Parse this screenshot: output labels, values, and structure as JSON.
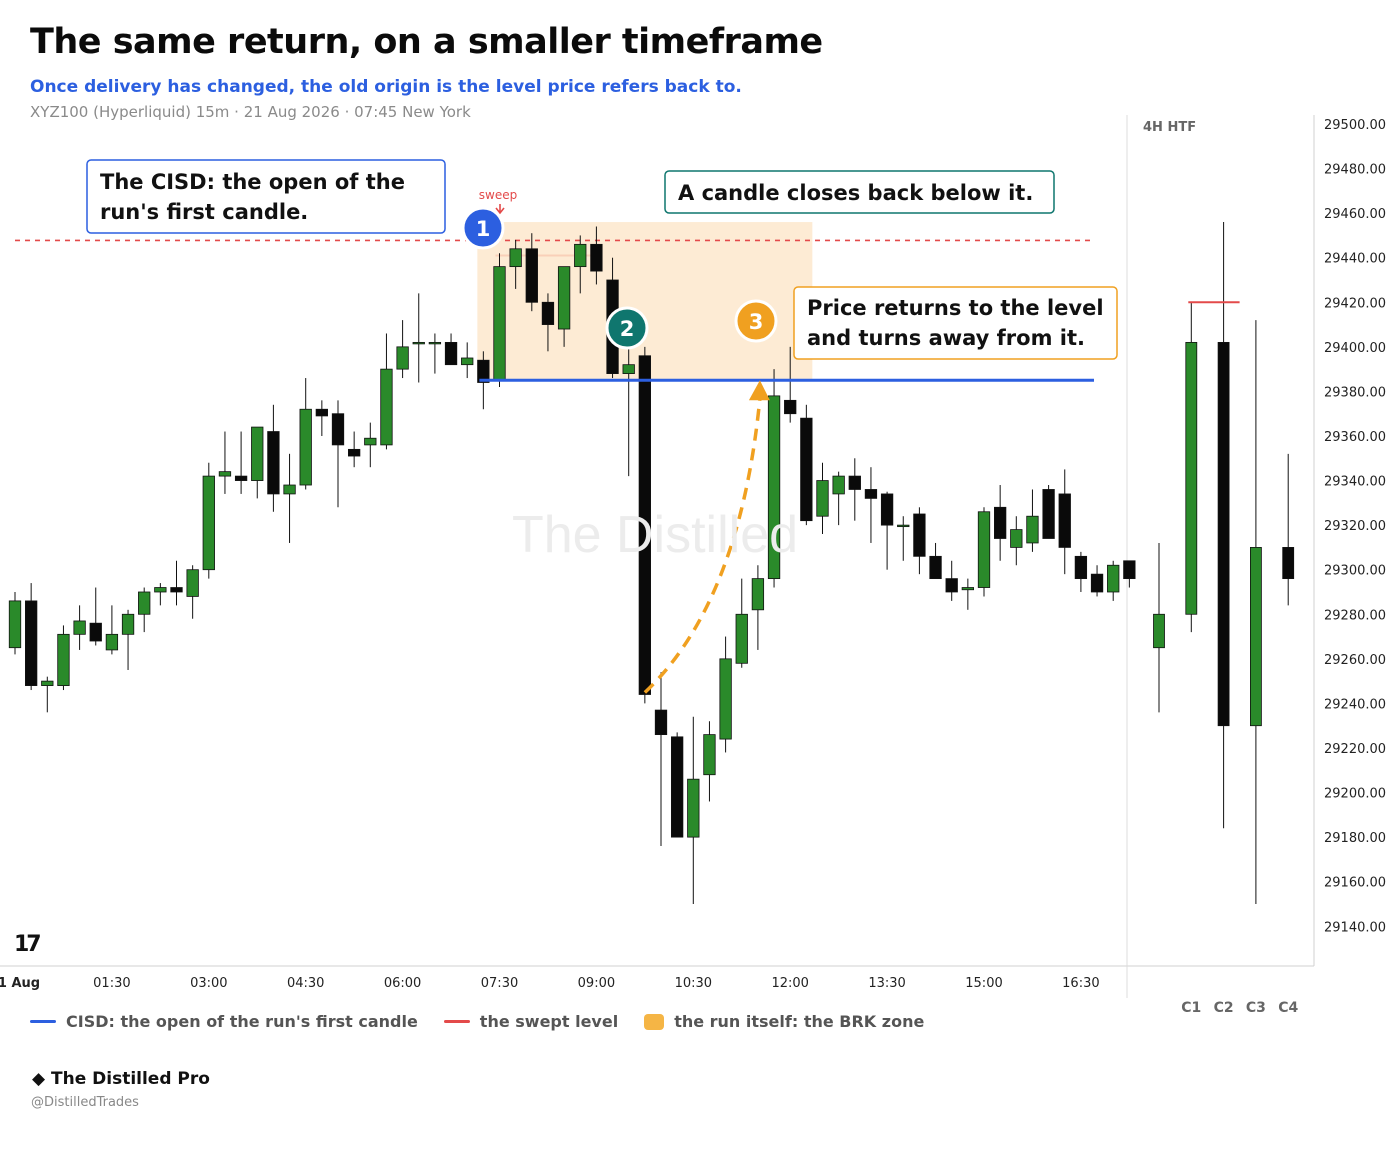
{
  "header": {
    "title": "The same return, on a smaller timeframe",
    "subtitle": "Once delivery has changed, the old origin is the level price refers back to.",
    "meta": "XYZ100 (Hyperliquid) 15m · 21 Aug 2026 · 07:45 New York"
  },
  "annotations": {
    "cisd_box": [
      "The CISD: the open of the",
      "run's first candle."
    ],
    "close_box": "A candle closes back below it.",
    "return_box": [
      "Price returns to the level",
      "and turns away from it."
    ],
    "sweep": "sweep",
    "marker1": "1",
    "marker2": "2",
    "marker3": "3",
    "watermark": "The Distilled",
    "tv_logo": "17"
  },
  "legend": {
    "cisd": "CISD: the open of the run's first candle",
    "swept": "the swept level",
    "run": "the run itself: the BRK zone"
  },
  "footer": {
    "brand": "◆ The Distilled Pro",
    "handle": "@DistilledTrades"
  },
  "colors": {
    "up": "#2a8a2a",
    "down": "#0a0a0a",
    "cisd": "#2c5fe0",
    "swept": "#e34a4a",
    "zone": "#fde8cc",
    "zone_legend": "#f5b545",
    "marker2": "#0f766e",
    "marker3": "#f0a020",
    "return_path": "#f0a020"
  },
  "chart_data": [
    {
      "type": "candlestick",
      "timeframe": "15m",
      "x_ticks": [
        "1 Aug",
        "01:30",
        "03:00",
        "04:30",
        "06:00",
        "07:30",
        "09:00",
        "10:30",
        "12:00",
        "13:30",
        "15:00",
        "16:30"
      ],
      "y_ticks": [
        "29500.00",
        "29480.00",
        "29460.00",
        "29440.00",
        "29420.00",
        "29400.00",
        "29380.00",
        "29360.00",
        "29340.00",
        "29320.00",
        "29300.00",
        "29280.00",
        "29260.00",
        "29240.00",
        "29220.00",
        "29200.00",
        "29180.00",
        "29160.00",
        "29140.00"
      ],
      "ylim": [
        29130,
        29505
      ],
      "levels": {
        "cisd": 29385,
        "swept": 29441
      },
      "brk_zone": {
        "from_index": 29,
        "to_index": 49,
        "low": 29385,
        "high": 29456
      },
      "candles": [
        {
          "o": 29265,
          "h": 29290,
          "l": 29262,
          "c": 29286
        },
        {
          "o": 29286,
          "h": 29294,
          "l": 29246,
          "c": 29248
        },
        {
          "o": 29248,
          "h": 29252,
          "l": 29236,
          "c": 29250
        },
        {
          "o": 29248,
          "h": 29275,
          "l": 29246,
          "c": 29271
        },
        {
          "o": 29271,
          "h": 29284,
          "l": 29264,
          "c": 29277
        },
        {
          "o": 29276,
          "h": 29292,
          "l": 29266,
          "c": 29268
        },
        {
          "o": 29264,
          "h": 29284,
          "l": 29262,
          "c": 29271
        },
        {
          "o": 29271,
          "h": 29282,
          "l": 29255,
          "c": 29280
        },
        {
          "o": 29280,
          "h": 29292,
          "l": 29272,
          "c": 29290
        },
        {
          "o": 29290,
          "h": 29294,
          "l": 29284,
          "c": 29292
        },
        {
          "o": 29292,
          "h": 29304,
          "l": 29284,
          "c": 29290
        },
        {
          "o": 29288,
          "h": 29302,
          "l": 29278,
          "c": 29300
        },
        {
          "o": 29300,
          "h": 29348,
          "l": 29296,
          "c": 29342
        },
        {
          "o": 29342,
          "h": 29362,
          "l": 29334,
          "c": 29344
        },
        {
          "o": 29342,
          "h": 29362,
          "l": 29334,
          "c": 29340
        },
        {
          "o": 29340,
          "h": 29364,
          "l": 29332,
          "c": 29364
        },
        {
          "o": 29362,
          "h": 29374,
          "l": 29326,
          "c": 29334
        },
        {
          "o": 29334,
          "h": 29352,
          "l": 29312,
          "c": 29338
        },
        {
          "o": 29338,
          "h": 29386,
          "l": 29336,
          "c": 29372
        },
        {
          "o": 29372,
          "h": 29376,
          "l": 29360,
          "c": 29369
        },
        {
          "o": 29370,
          "h": 29376,
          "l": 29328,
          "c": 29356
        },
        {
          "o": 29354,
          "h": 29362,
          "l": 29346,
          "c": 29351
        },
        {
          "o": 29356,
          "h": 29366,
          "l": 29346,
          "c": 29359
        },
        {
          "o": 29356,
          "h": 29406,
          "l": 29354,
          "c": 29390
        },
        {
          "o": 29390,
          "h": 29412,
          "l": 29386,
          "c": 29400
        },
        {
          "o": 29402,
          "h": 29424,
          "l": 29384,
          "c": 29402
        },
        {
          "o": 29402,
          "h": 29406,
          "l": 29388,
          "c": 29402
        },
        {
          "o": 29402,
          "h": 29406,
          "l": 29392,
          "c": 29392
        },
        {
          "o": 29392,
          "h": 29402,
          "l": 29386,
          "c": 29395
        },
        {
          "o": 29394,
          "h": 29398,
          "l": 29372,
          "c": 29384
        },
        {
          "o": 29385,
          "h": 29442,
          "l": 29382,
          "c": 29436
        },
        {
          "o": 29436,
          "h": 29448,
          "l": 29426,
          "c": 29444
        },
        {
          "o": 29444,
          "h": 29451,
          "l": 29416,
          "c": 29420
        },
        {
          "o": 29420,
          "h": 29424,
          "l": 29398,
          "c": 29410
        },
        {
          "o": 29408,
          "h": 29436,
          "l": 29400,
          "c": 29436
        },
        {
          "o": 29436,
          "h": 29450,
          "l": 29424,
          "c": 29446
        },
        {
          "o": 29446,
          "h": 29454,
          "l": 29428,
          "c": 29434
        },
        {
          "o": 29430,
          "h": 29440,
          "l": 29386,
          "c": 29388
        },
        {
          "o": 29388,
          "h": 29402,
          "l": 29342,
          "c": 29392
        },
        {
          "o": 29396,
          "h": 29400,
          "l": 29240,
          "c": 29244
        },
        {
          "o": 29237,
          "h": 29254,
          "l": 29176,
          "c": 29226
        },
        {
          "o": 29225,
          "h": 29227,
          "l": 29180,
          "c": 29180
        },
        {
          "o": 29180,
          "h": 29234,
          "l": 29150,
          "c": 29206
        },
        {
          "o": 29208,
          "h": 29232,
          "l": 29196,
          "c": 29226
        },
        {
          "o": 29224,
          "h": 29270,
          "l": 29218,
          "c": 29260
        },
        {
          "o": 29258,
          "h": 29296,
          "l": 29256,
          "c": 29280
        },
        {
          "o": 29282,
          "h": 29302,
          "l": 29264,
          "c": 29296
        },
        {
          "o": 29296,
          "h": 29390,
          "l": 29292,
          "c": 29378
        },
        {
          "o": 29376,
          "h": 29400,
          "l": 29366,
          "c": 29370
        },
        {
          "o": 29368,
          "h": 29374,
          "l": 29320,
          "c": 29322
        },
        {
          "o": 29324,
          "h": 29348,
          "l": 29316,
          "c": 29340
        },
        {
          "o": 29334,
          "h": 29344,
          "l": 29320,
          "c": 29342
        },
        {
          "o": 29342,
          "h": 29350,
          "l": 29322,
          "c": 29336
        },
        {
          "o": 29336,
          "h": 29346,
          "l": 29312,
          "c": 29332
        },
        {
          "o": 29334,
          "h": 29335,
          "l": 29300,
          "c": 29320
        },
        {
          "o": 29320,
          "h": 29324,
          "l": 29304,
          "c": 29320
        },
        {
          "o": 29325,
          "h": 29328,
          "l": 29298,
          "c": 29306
        },
        {
          "o": 29306,
          "h": 29312,
          "l": 29296,
          "c": 29296
        },
        {
          "o": 29296,
          "h": 29304,
          "l": 29286,
          "c": 29290
        },
        {
          "o": 29291,
          "h": 29296,
          "l": 29282,
          "c": 29292
        },
        {
          "o": 29292,
          "h": 29328,
          "l": 29288,
          "c": 29326
        },
        {
          "o": 29328,
          "h": 29338,
          "l": 29304,
          "c": 29314
        },
        {
          "o": 29310,
          "h": 29324,
          "l": 29302,
          "c": 29318
        },
        {
          "o": 29312,
          "h": 29336,
          "l": 29308,
          "c": 29324
        },
        {
          "o": 29336,
          "h": 29338,
          "l": 29314,
          "c": 29314
        },
        {
          "o": 29334,
          "h": 29345,
          "l": 29298,
          "c": 29310
        },
        {
          "o": 29306,
          "h": 29308,
          "l": 29290,
          "c": 29296
        },
        {
          "o": 29298,
          "h": 29302,
          "l": 29288,
          "c": 29290
        },
        {
          "o": 29290,
          "h": 29304,
          "l": 29286,
          "c": 29302
        },
        {
          "o": 29304,
          "h": 29304,
          "l": 29292,
          "c": 29296
        }
      ]
    },
    {
      "type": "candlestick",
      "timeframe": "4H HTF",
      "label": "4H HTF",
      "categories": [
        "C1",
        "C2",
        "C3",
        "C4"
      ],
      "candles": [
        {
          "o": 29265,
          "h": 29312,
          "l": 29236,
          "c": 29280
        },
        {
          "o": 29280,
          "h": 29420,
          "l": 29272,
          "c": 29402
        },
        {
          "o": 29402,
          "h": 29456,
          "l": 29184,
          "c": 29230
        },
        {
          "o": 29230,
          "h": 29412,
          "l": 29150,
          "c": 29310
        },
        {
          "o": 29310,
          "h": 29352,
          "l": 29284,
          "c": 29296
        }
      ],
      "candle_labels": [
        "",
        "C1",
        "C2",
        "C3",
        "C4"
      ],
      "swept_high": 29420
    }
  ]
}
